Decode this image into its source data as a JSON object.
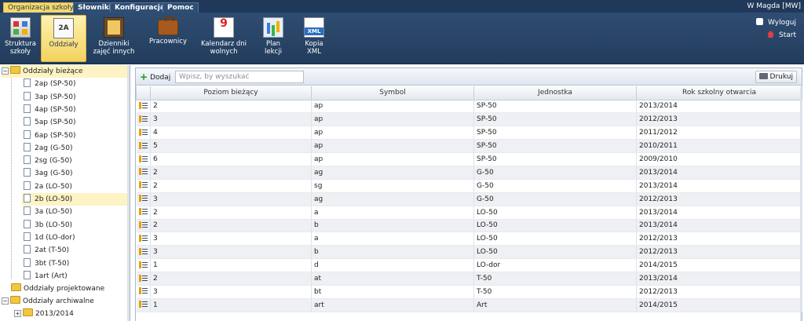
{
  "menu": {
    "tabs": [
      {
        "label": "Organizacja szkoły",
        "active": true
      },
      {
        "label": "Słowniki",
        "active": false
      },
      {
        "label": "Konfiguracja",
        "active": false
      },
      {
        "label": "Pomoc",
        "active": false
      }
    ],
    "user": "W Magda [MW]"
  },
  "toolbar": {
    "buttons": [
      {
        "icon": "school-structure-icon",
        "label": "Struktura szkoły"
      },
      {
        "icon": "class-2a-icon",
        "icon_text": "2A",
        "label": "Oddziały",
        "active": true
      },
      {
        "icon": "journal-icon",
        "label": "Dzienniki zajęć innych"
      },
      {
        "icon": "briefcase-icon",
        "label": "Pracownicy"
      },
      {
        "icon": "calendar-icon",
        "label": "Kalendarz dni wolnych"
      },
      {
        "icon": "lesson-plan-icon",
        "label": "Plan lekcji"
      },
      {
        "icon": "xml-icon",
        "label": "Kopia XML"
      }
    ],
    "logout_label": "Wyloguj",
    "start_label": "Start"
  },
  "tree": {
    "current_label": "Oddziały bieżące",
    "current_items": [
      "2ap (SP-50)",
      "3ap (SP-50)",
      "4ap (SP-50)",
      "5ap (SP-50)",
      "6ap (SP-50)",
      "2ag (G-50)",
      "2sg (G-50)",
      "3ag (G-50)",
      "2a (LO-50)",
      "2b (LO-50)",
      "3a (LO-50)",
      "3b (LO-50)",
      "1d (LO-dor)",
      "2at (T-50)",
      "3bt (T-50)",
      "1art (Art)"
    ],
    "selected_item": "2b (LO-50)",
    "projected_label": "Oddziały projektowane",
    "archive_label": "Oddziały archiwalne",
    "archive_years": [
      "2013/2014"
    ]
  },
  "main": {
    "add_label": "Dodaj",
    "search_placeholder": "Wpisz, by wyszukać",
    "print_label": "Drukuj",
    "columns": [
      "Poziom bieżący",
      "Symbol",
      "Jednostka",
      "Rok szkolny otwarcia"
    ],
    "rows": [
      [
        "2",
        "ap",
        "SP-50",
        "2013/2014"
      ],
      [
        "3",
        "ap",
        "SP-50",
        "2012/2013"
      ],
      [
        "4",
        "ap",
        "SP-50",
        "2011/2012"
      ],
      [
        "5",
        "ap",
        "SP-50",
        "2010/2011"
      ],
      [
        "6",
        "ap",
        "SP-50",
        "2009/2010"
      ],
      [
        "2",
        "ag",
        "G-50",
        "2013/2014"
      ],
      [
        "2",
        "sg",
        "G-50",
        "2013/2014"
      ],
      [
        "3",
        "ag",
        "G-50",
        "2012/2013"
      ],
      [
        "2",
        "a",
        "LO-50",
        "2013/2014"
      ],
      [
        "2",
        "b",
        "LO-50",
        "2013/2014"
      ],
      [
        "3",
        "a",
        "LO-50",
        "2012/2013"
      ],
      [
        "3",
        "b",
        "LO-50",
        "2012/2013"
      ],
      [
        "1",
        "d",
        "LO-dor",
        "2014/2015"
      ],
      [
        "2",
        "at",
        "T-50",
        "2013/2014"
      ],
      [
        "3",
        "bt",
        "T-50",
        "2012/2013"
      ],
      [
        "1",
        "art",
        "Art",
        "2014/2015"
      ]
    ]
  }
}
